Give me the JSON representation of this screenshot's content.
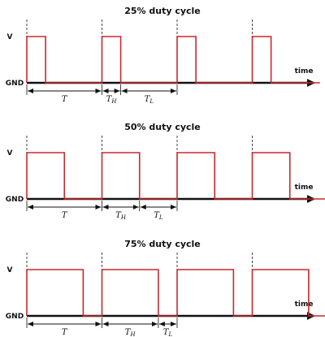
{
  "colors": {
    "signal": "#c8282d",
    "axis": "#111111",
    "guide": "#444444"
  },
  "labels": {
    "high": "V",
    "low": "GND",
    "time": "time",
    "period": "T",
    "high_sym": "T",
    "high_sub": "H",
    "low_sym": "T",
    "low_sub": "L"
  },
  "panels": [
    {
      "title": "25% duty cycle",
      "duty": 0.25
    },
    {
      "title": "50% duty cycle",
      "duty": 0.5
    },
    {
      "title": "75% duty cycle",
      "duty": 0.75
    }
  ]
}
